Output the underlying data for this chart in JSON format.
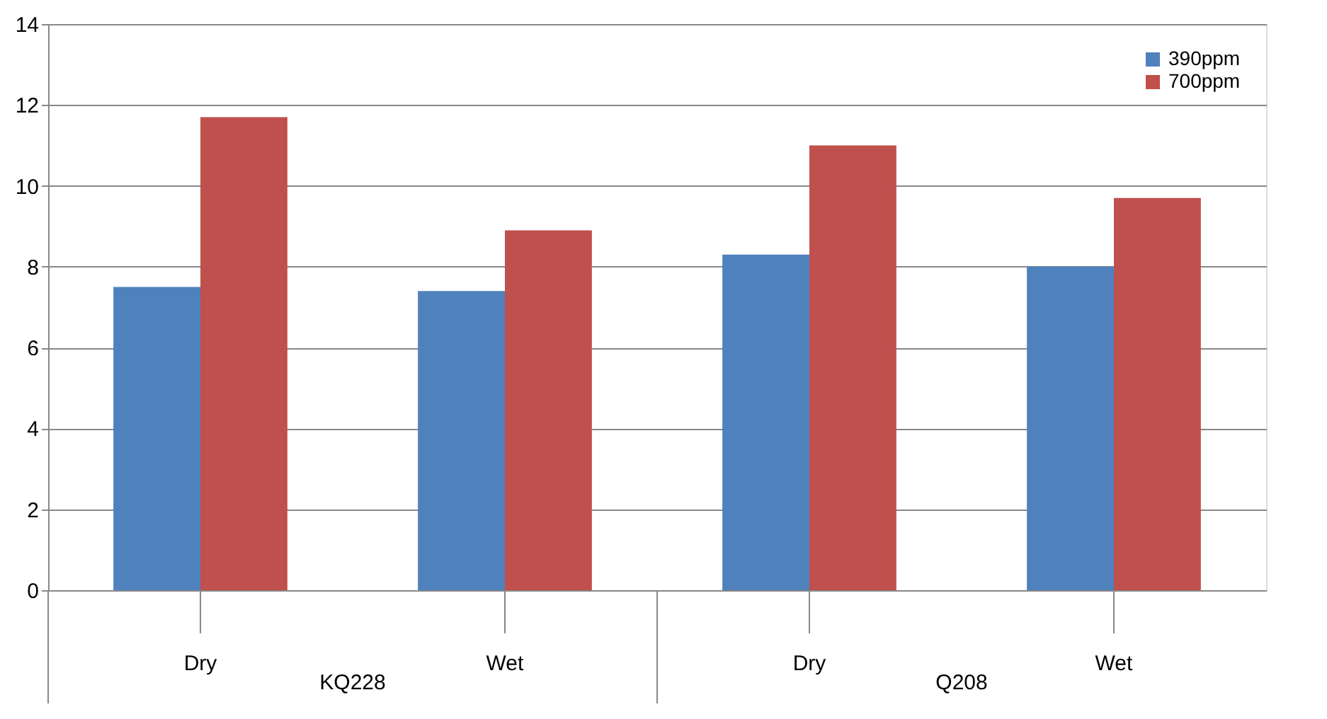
{
  "chart_data": {
    "type": "bar",
    "categories": [
      "Dry",
      "Wet",
      "Dry",
      "Wet"
    ],
    "series": [
      {
        "name": "390ppm",
        "color": "#4f81bd",
        "values": [
          7.5,
          7.4,
          8.3,
          8.0
        ]
      },
      {
        "name": "700ppm",
        "color": "#c0504d",
        "values": [
          11.7,
          8.9,
          11.0,
          9.7
        ]
      }
    ],
    "annotations": [
      "KQ228",
      "Q208"
    ],
    "ylim": [
      0,
      14
    ],
    "yticks": [
      0,
      2,
      4,
      6,
      8,
      10,
      12,
      14
    ],
    "grid": "y",
    "legend": "top right"
  }
}
